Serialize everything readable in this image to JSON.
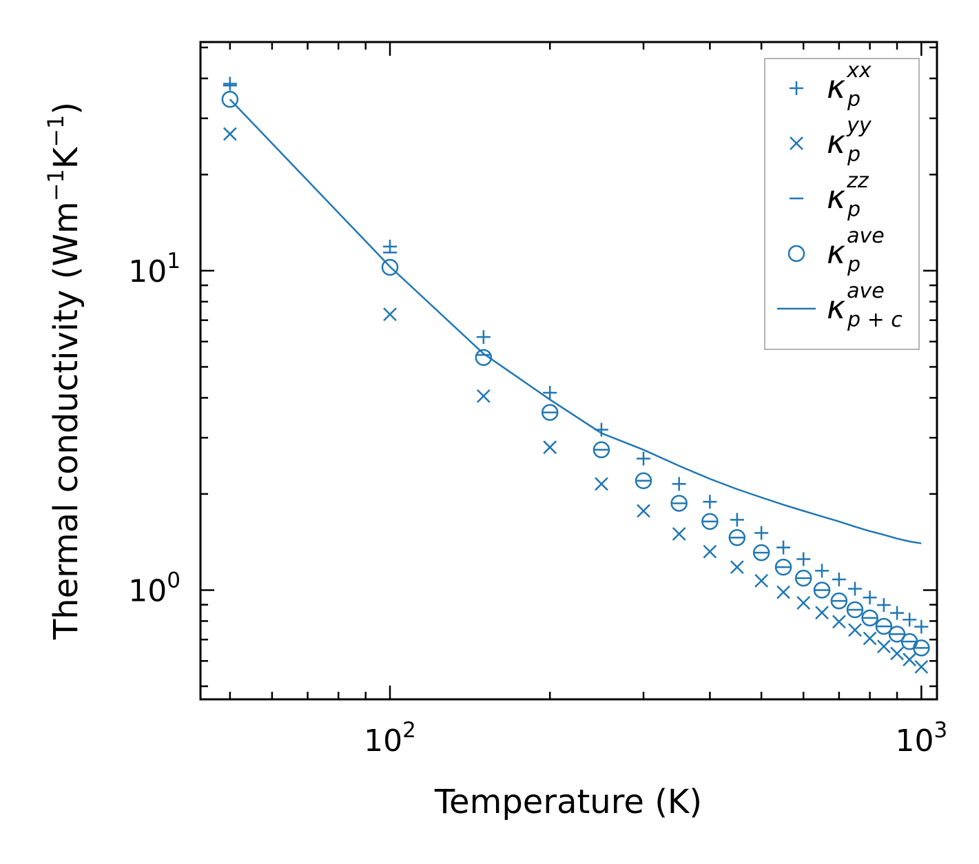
{
  "chart_data": {
    "type": "scatter",
    "xscale": "log",
    "yscale": "log",
    "xlim": [
      44,
      1070
    ],
    "ylim": [
      0.455,
      52
    ],
    "xlabel": "Temperature (K)",
    "ylabel_main": "Thermal conductivity (Wm",
    "ylabel_exp1": "−1",
    "ylabel_mid": "K",
    "ylabel_exp2": "−1",
    "ylabel_close": ")",
    "x_ticks": [
      {
        "value": 100,
        "base": "10",
        "exp": "2"
      },
      {
        "value": 1000,
        "base": "10",
        "exp": "3"
      }
    ],
    "y_ticks": [
      {
        "value": 1,
        "base": "10",
        "exp": "0"
      },
      {
        "value": 10,
        "base": "10",
        "exp": "1"
      }
    ],
    "x": [
      50,
      100,
      150,
      200,
      250,
      300,
      350,
      400,
      450,
      500,
      550,
      600,
      650,
      700,
      750,
      800,
      850,
      900,
      950,
      1000
    ],
    "series": [
      {
        "name": "kappa_p_xx",
        "marker": "plus",
        "values": [
          38.5,
          11.9,
          6.2,
          4.15,
          3.18,
          2.58,
          2.15,
          1.89,
          1.66,
          1.51,
          1.36,
          1.25,
          1.15,
          1.08,
          1.01,
          0.948,
          0.898,
          0.848,
          0.808,
          0.768
        ]
      },
      {
        "name": "kappa_p_yy",
        "marker": "x",
        "values": [
          26.8,
          7.3,
          4.05,
          2.8,
          2.15,
          1.77,
          1.5,
          1.32,
          1.18,
          1.07,
          0.985,
          0.912,
          0.85,
          0.796,
          0.75,
          0.706,
          0.666,
          0.633,
          0.606,
          0.575
        ]
      },
      {
        "name": "kappa_p_zz",
        "marker": "hline",
        "values": [
          38.0,
          11.4,
          5.45,
          3.6,
          2.75,
          2.2,
          1.87,
          1.64,
          1.46,
          1.31,
          1.18,
          1.09,
          1.0,
          0.925,
          0.868,
          0.818,
          0.77,
          0.728,
          0.69,
          0.659
        ]
      },
      {
        "name": "kappa_p_ave",
        "marker": "circle",
        "values": [
          34.4,
          10.25,
          5.35,
          3.6,
          2.75,
          2.2,
          1.87,
          1.64,
          1.46,
          1.31,
          1.18,
          1.09,
          1.0,
          0.925,
          0.868,
          0.818,
          0.77,
          0.728,
          0.69,
          0.659
        ]
      },
      {
        "name": "kappa_pc_ave",
        "marker": "line",
        "values": [
          34.4,
          10.3,
          5.5,
          3.95,
          3.1,
          2.75,
          2.45,
          2.23,
          2.07,
          1.95,
          1.85,
          1.77,
          1.7,
          1.64,
          1.58,
          1.53,
          1.49,
          1.45,
          1.42,
          1.4
        ]
      }
    ],
    "legend": {
      "position": "top-right",
      "entries": [
        {
          "symbol": "+",
          "base": "κ",
          "sup": "xx",
          "sub": "p"
        },
        {
          "symbol": "×",
          "base": "κ",
          "sup": "yy",
          "sub": "p"
        },
        {
          "symbol": "–",
          "base": "κ",
          "sup": "zz",
          "sub": "p"
        },
        {
          "symbol": "○",
          "base": "κ",
          "sup": "ave",
          "sub": "p"
        },
        {
          "symbol": "—",
          "base": "κ",
          "sup": "ave",
          "sub": "p + c"
        }
      ]
    },
    "color": "#1f77b4"
  }
}
